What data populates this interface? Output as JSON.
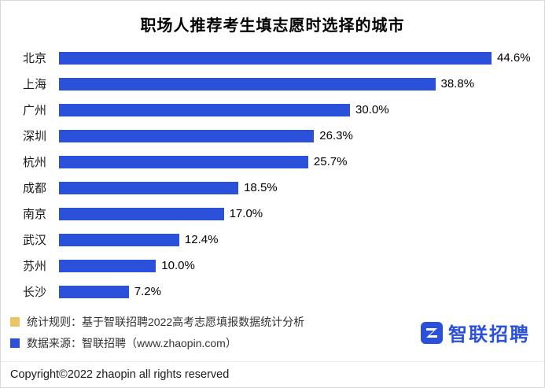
{
  "page": {
    "title": "职场人推荐考生填志愿时选择的城市",
    "notes": [
      {
        "icon": "yellow-square",
        "icon_color": "#EAC561",
        "text": "统计规则：基于智联招聘2022高考志愿填报数据统计分析"
      },
      {
        "icon": "blue-square",
        "icon_color": "#2B50D9",
        "text": "数据来源：智联招聘（www.zhaopin.com）"
      }
    ],
    "logo_text": "智联招聘",
    "logo_color": "#2B50D9",
    "copyright": "Copyright©2022 zhaopin all rights reserved"
  },
  "chart_data": {
    "type": "bar",
    "orientation": "horizontal",
    "title": "职场人推荐考生填志愿时选择的城市",
    "categories": [
      "北京",
      "上海",
      "广州",
      "深圳",
      "杭州",
      "成都",
      "南京",
      "武汉",
      "苏州",
      "长沙"
    ],
    "values": [
      44.6,
      38.8,
      30.0,
      26.3,
      25.7,
      18.5,
      17.0,
      12.4,
      10.0,
      7.2
    ],
    "value_labels": [
      "44.6%",
      "38.8%",
      "30.0%",
      "26.3%",
      "25.7%",
      "18.5%",
      "17.0%",
      "12.4%",
      "10.0%",
      "7.2%"
    ],
    "bar_color": "#2B50D9",
    "xlim": [
      0,
      46
    ],
    "grid": false,
    "legend": "none",
    "value_label_position": "right-of-bar"
  }
}
